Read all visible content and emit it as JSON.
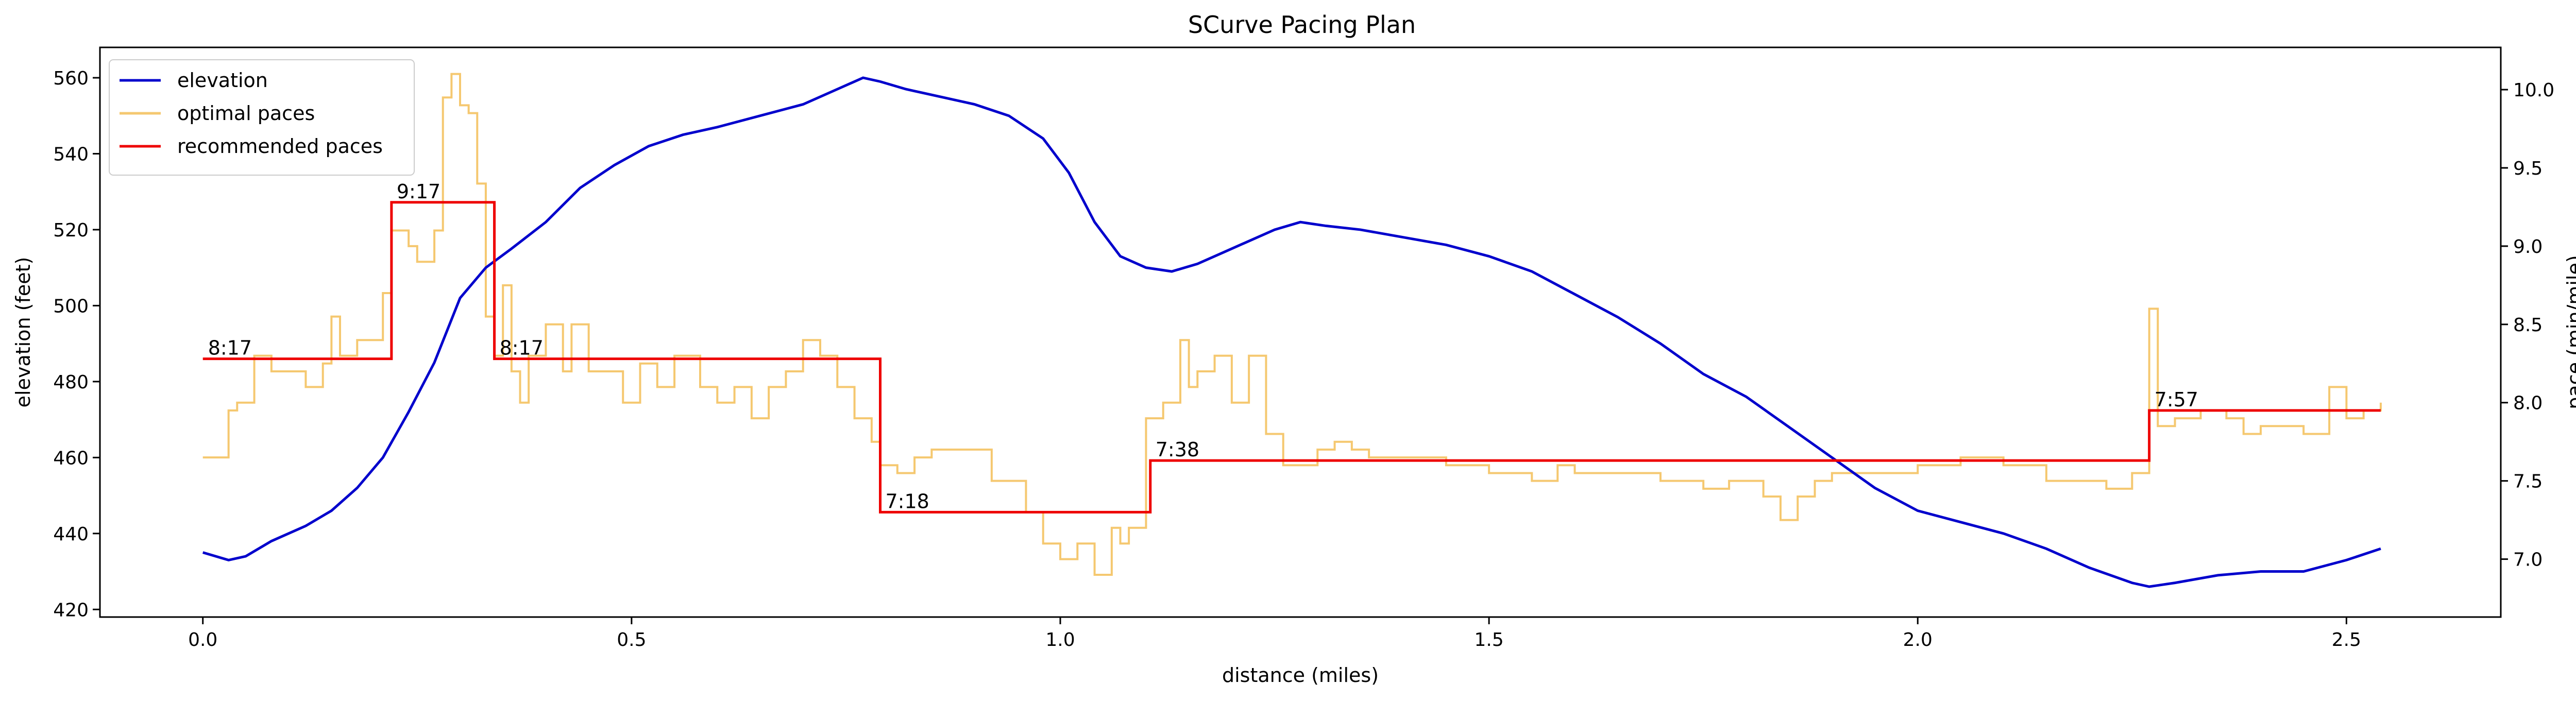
{
  "chart_data": {
    "type": "line",
    "title": "SCurve Pacing Plan",
    "xlabel": "distance (miles)",
    "ylabel_left": "elevation (feet)",
    "ylabel_right": "pace (min/mile)",
    "xlim": [
      -0.12,
      2.68
    ],
    "ylim_left": [
      418,
      568
    ],
    "ylim_right": [
      6.63,
      10.27
    ],
    "x_ticks": [
      0.0,
      0.5,
      1.0,
      1.5,
      2.0,
      2.5
    ],
    "x_tick_labels": [
      "0.0",
      "0.5",
      "1.0",
      "1.5",
      "2.0",
      "2.5"
    ],
    "y_left_ticks": [
      420,
      440,
      460,
      480,
      500,
      520,
      540,
      560
    ],
    "y_left_tick_labels": [
      "420",
      "440",
      "460",
      "480",
      "500",
      "520",
      "540",
      "560"
    ],
    "y_right_ticks": [
      7.0,
      7.5,
      8.0,
      8.5,
      9.0,
      9.5,
      10.0
    ],
    "y_right_tick_labels": [
      "7.0",
      "7.5",
      "8.0",
      "8.5",
      "9.0",
      "9.5",
      "10.0"
    ],
    "grid": false,
    "legend_position": "top-left",
    "series": [
      {
        "name": "elevation",
        "axis": "left",
        "color": "#0000cc",
        "style": "line",
        "x": [
          0.0,
          0.03,
          0.05,
          0.08,
          0.12,
          0.15,
          0.18,
          0.21,
          0.24,
          0.27,
          0.3,
          0.33,
          0.36,
          0.4,
          0.44,
          0.48,
          0.52,
          0.56,
          0.6,
          0.65,
          0.7,
          0.74,
          0.77,
          0.79,
          0.82,
          0.86,
          0.9,
          0.94,
          0.98,
          1.01,
          1.04,
          1.07,
          1.1,
          1.13,
          1.16,
          1.19,
          1.22,
          1.25,
          1.28,
          1.31,
          1.35,
          1.4,
          1.45,
          1.5,
          1.55,
          1.6,
          1.65,
          1.7,
          1.75,
          1.8,
          1.85,
          1.9,
          1.95,
          2.0,
          2.05,
          2.1,
          2.15,
          2.2,
          2.25,
          2.27,
          2.3,
          2.35,
          2.4,
          2.45,
          2.5,
          2.54
        ],
        "y": [
          435,
          433,
          434,
          438,
          442,
          446,
          452,
          460,
          472,
          485,
          502,
          510,
          515,
          522,
          531,
          537,
          542,
          545,
          547,
          550,
          553,
          557,
          560,
          559,
          557,
          555,
          553,
          550,
          544,
          535,
          522,
          513,
          510,
          509,
          511,
          514,
          517,
          520,
          522,
          521,
          520,
          518,
          516,
          513,
          509,
          503,
          497,
          490,
          482,
          476,
          468,
          460,
          452,
          446,
          443,
          440,
          436,
          431,
          427,
          426,
          427,
          429,
          430,
          430,
          433,
          436
        ]
      },
      {
        "name": "optimal paces",
        "axis": "right",
        "color": "#f5c870",
        "style": "step",
        "x": [
          0.0,
          0.03,
          0.04,
          0.06,
          0.08,
          0.09,
          0.12,
          0.14,
          0.15,
          0.16,
          0.17,
          0.18,
          0.2,
          0.21,
          0.22,
          0.24,
          0.25,
          0.27,
          0.28,
          0.29,
          0.3,
          0.31,
          0.32,
          0.33,
          0.34,
          0.35,
          0.36,
          0.37,
          0.38,
          0.4,
          0.42,
          0.43,
          0.45,
          0.47,
          0.49,
          0.51,
          0.53,
          0.55,
          0.58,
          0.6,
          0.62,
          0.64,
          0.66,
          0.68,
          0.7,
          0.72,
          0.74,
          0.76,
          0.78,
          0.79,
          0.81,
          0.83,
          0.85,
          0.88,
          0.92,
          0.96,
          0.98,
          1.0,
          1.02,
          1.04,
          1.06,
          1.07,
          1.08,
          1.1,
          1.12,
          1.14,
          1.15,
          1.16,
          1.18,
          1.2,
          1.22,
          1.24,
          1.26,
          1.28,
          1.3,
          1.32,
          1.34,
          1.36,
          1.4,
          1.45,
          1.5,
          1.55,
          1.58,
          1.6,
          1.65,
          1.7,
          1.75,
          1.78,
          1.8,
          1.82,
          1.84,
          1.86,
          1.88,
          1.9,
          1.95,
          2.0,
          2.05,
          2.1,
          2.15,
          2.2,
          2.22,
          2.25,
          2.27,
          2.28,
          2.3,
          2.33,
          2.36,
          2.38,
          2.4,
          2.45,
          2.48,
          2.5,
          2.52,
          2.54
        ],
        "y": [
          7.65,
          7.95,
          8.0,
          8.3,
          8.2,
          8.2,
          8.1,
          8.25,
          8.55,
          8.3,
          8.3,
          8.4,
          8.4,
          8.7,
          9.1,
          9.0,
          8.9,
          9.1,
          9.95,
          10.1,
          9.9,
          9.85,
          9.4,
          8.55,
          8.3,
          8.75,
          8.2,
          8.0,
          8.3,
          8.5,
          8.2,
          8.5,
          8.2,
          8.2,
          8.0,
          8.25,
          8.1,
          8.3,
          8.1,
          8.0,
          8.1,
          7.9,
          8.1,
          8.2,
          8.4,
          8.3,
          8.1,
          7.9,
          7.75,
          7.6,
          7.55,
          7.65,
          7.7,
          7.7,
          7.5,
          7.3,
          7.1,
          7.0,
          7.1,
          6.9,
          7.2,
          7.1,
          7.2,
          7.9,
          8.0,
          8.4,
          8.1,
          8.2,
          8.3,
          8.0,
          8.3,
          7.8,
          7.6,
          7.6,
          7.7,
          7.75,
          7.7,
          7.65,
          7.65,
          7.6,
          7.55,
          7.5,
          7.6,
          7.55,
          7.55,
          7.5,
          7.45,
          7.5,
          7.5,
          7.4,
          7.25,
          7.4,
          7.5,
          7.55,
          7.55,
          7.6,
          7.65,
          7.6,
          7.5,
          7.5,
          7.45,
          7.55,
          8.6,
          7.85,
          7.9,
          7.95,
          7.9,
          7.8,
          7.85,
          7.8,
          8.1,
          7.9,
          7.95,
          8.0
        ]
      },
      {
        "name": "recommended paces",
        "axis": "right",
        "color": "#ee0000",
        "style": "step",
        "x": [
          0.0,
          0.22,
          0.34,
          0.79,
          1.105,
          2.27,
          2.54
        ],
        "y": [
          8.28,
          9.28,
          8.28,
          7.3,
          7.63,
          7.95,
          7.95
        ],
        "labels": [
          {
            "x": 0.0,
            "y": 8.28,
            "text": "8:17"
          },
          {
            "x": 0.22,
            "y": 9.28,
            "text": "9:17"
          },
          {
            "x": 0.34,
            "y": 8.28,
            "text": "8:17"
          },
          {
            "x": 0.79,
            "y": 7.3,
            "text": "7:18"
          },
          {
            "x": 1.105,
            "y": 7.63,
            "text": "7:38"
          },
          {
            "x": 2.27,
            "y": 7.95,
            "text": "7:57"
          }
        ]
      }
    ]
  }
}
